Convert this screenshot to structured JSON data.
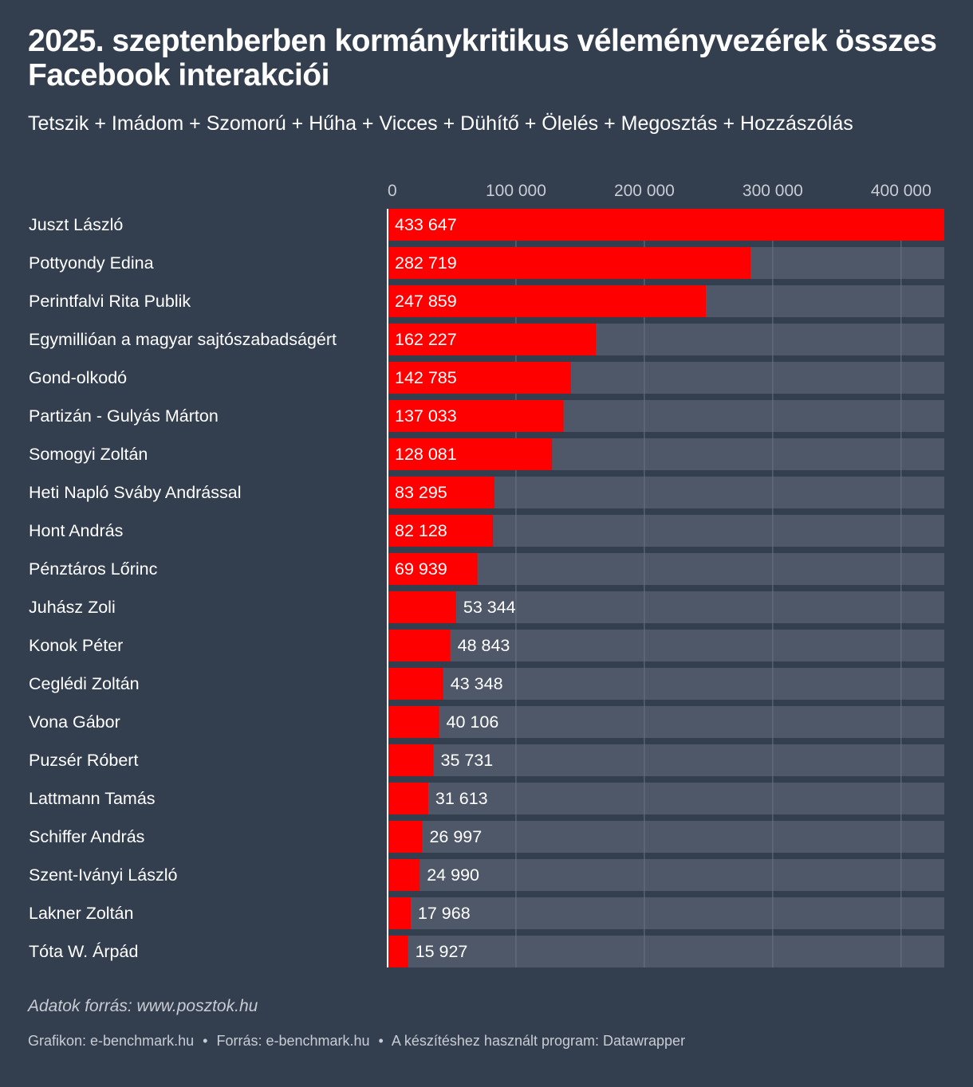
{
  "title": "2025. szeptenberben kormánykritikus véleményvezérek összes Facebook interakciói",
  "subtitle": "Tetszik + Imádom + Szomorú + Hűha + Vicces + Dühítő + Ölelés + Megosztás + Hozzászólás",
  "source_note": "Adatok forrás: www.posztok.hu",
  "footer": {
    "graphic": "Grafikon: e-benchmark.hu",
    "source": "Forrás: e-benchmark.hu",
    "tool": "A készítéshez használt program: Datawrapper",
    "separator": "•"
  },
  "colors": {
    "background": "#333e4f",
    "bar": "#ff0000",
    "bar_track": "#4f5868",
    "gridline": "#6a7383",
    "tick_label": "#c8ccd3",
    "text": "#ffffff"
  },
  "chart_data": {
    "type": "bar",
    "orientation": "horizontal",
    "x_ticks": [
      0,
      100000,
      200000,
      300000,
      400000
    ],
    "x_tick_labels": [
      "0",
      "100 000",
      "200 000",
      "300 000",
      "400 000"
    ],
    "xlim": [
      0,
      433647
    ],
    "grid": true,
    "categories": [
      "Juszt László",
      "Pottyondy Edina",
      "Perintfalvi Rita Publik",
      "Egymillióan a magyar sajtószabadságért",
      "Gond-olkodó",
      "Partizán - Gulyás Márton",
      "Somogyi Zoltán",
      "Heti Napló Sváby Andrással",
      "Hont András",
      "Pénztáros Lőrinc",
      "Juhász Zoli",
      "Konok Péter",
      "Ceglédi Zoltán",
      "Vona Gábor",
      "Puzsér Róbert",
      "Lattmann Tamás",
      "Schiffer András",
      "Szent-Iványi László",
      "Lakner Zoltán",
      "Tóta W. Árpád"
    ],
    "values": [
      433647,
      282719,
      247859,
      162227,
      142785,
      137033,
      128081,
      83295,
      82128,
      69939,
      53344,
      48843,
      43348,
      40106,
      35731,
      31613,
      26997,
      24990,
      17968,
      15927
    ],
    "value_labels": [
      "433 647",
      "282 719",
      "247 859",
      "162 227",
      "142 785",
      "137 033",
      "128 081",
      "83 295",
      "82 128",
      "69 939",
      "53 344",
      "48 843",
      "43 348",
      "40 106",
      "35 731",
      "31 613",
      "26 997",
      "24 990",
      "17 968",
      "15 927"
    ]
  }
}
